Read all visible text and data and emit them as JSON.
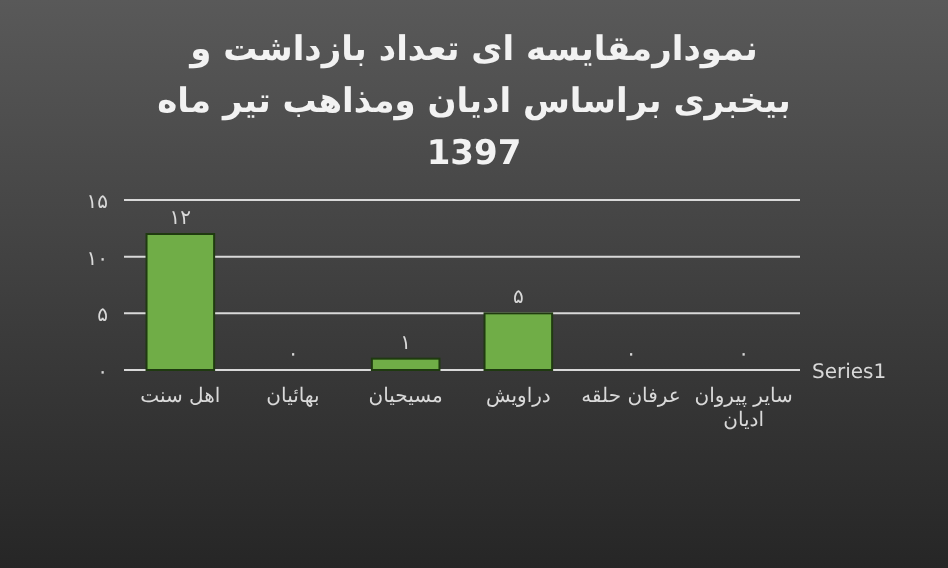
{
  "chart_data": {
    "type": "bar",
    "title": "نمودارمقایسه ای تعداد بازداشت  و بیخبری براساس ادیان ومذاهب تیر ماه 1397",
    "categories": [
      "اهل سنت",
      "بهائیان",
      "مسیحیان",
      "دراویش",
      "عرفان حلقه",
      "سایر پیروان ادیان"
    ],
    "series": [
      {
        "name": "Series1",
        "color": "#70ad47",
        "values": [
          12,
          0,
          1,
          5,
          0,
          0
        ],
        "value_labels": [
          "۱۲",
          "۰",
          "۱",
          "۵",
          "۰",
          "۰"
        ]
      }
    ],
    "ylim": [
      0,
      15
    ],
    "yticks": [
      {
        "value": 0,
        "label": "۰"
      },
      {
        "value": 5,
        "label": "۵"
      },
      {
        "value": 10,
        "label": "۱۰"
      },
      {
        "value": 15,
        "label": "۱۵"
      }
    ],
    "grid": "y"
  }
}
